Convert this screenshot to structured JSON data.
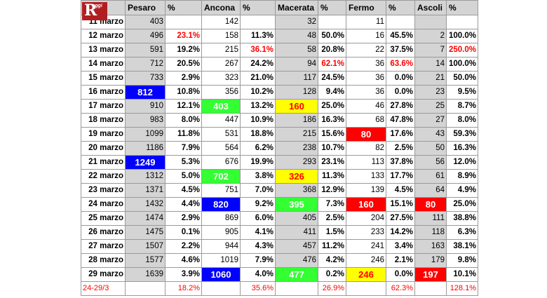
{
  "logo": {
    "letter": "R",
    "text": "oggi"
  },
  "header": [
    "",
    "Pesaro",
    "%",
    "Ancona",
    "%",
    "Macerata",
    "%",
    "Fermo",
    "%",
    "Ascoli",
    "%"
  ],
  "colors": {
    "blue": "#0000ff",
    "green": "#33ff33",
    "yellow": "#ffff00",
    "red": "#ff0000",
    "gray": "#d4d4d4"
  },
  "rows": [
    {
      "date": "11 marzo",
      "values": [
        "403",
        "",
        "142",
        "",
        "32",
        "",
        "11",
        "",
        "",
        ""
      ]
    },
    {
      "date": "12 marzo",
      "values": [
        "496",
        "23.1%",
        "158",
        "11.3%",
        "48",
        "50.0%",
        "16",
        "45.5%",
        "2",
        "100.0%"
      ]
    },
    {
      "date": "13 marzo",
      "values": [
        "591",
        "19.2%",
        "215",
        "36.1%",
        "58",
        "20.8%",
        "22",
        "37.5%",
        "7",
        "250.0%"
      ]
    },
    {
      "date": "14 marzo",
      "values": [
        "712",
        "20.5%",
        "267",
        "24.2%",
        "94",
        "62.1%",
        "36",
        "63.6%",
        "14",
        "100.0%"
      ]
    },
    {
      "date": "15 marzo",
      "values": [
        "733",
        "2.9%",
        "323",
        "21.0%",
        "117",
        "24.5%",
        "36",
        "0.0%",
        "21",
        "50.0%"
      ]
    },
    {
      "date": "16 marzo",
      "values": [
        "812",
        "10.8%",
        "356",
        "10.2%",
        "128",
        "9.4%",
        "36",
        "0.0%",
        "23",
        "9.5%"
      ]
    },
    {
      "date": "17 marzo",
      "values": [
        "910",
        "12.1%",
        "403",
        "13.2%",
        "160",
        "25.0%",
        "46",
        "27.8%",
        "25",
        "8.7%"
      ]
    },
    {
      "date": "18 marzo",
      "values": [
        "983",
        "8.0%",
        "447",
        "10.9%",
        "186",
        "16.3%",
        "68",
        "47.8%",
        "27",
        "8.0%"
      ]
    },
    {
      "date": "19 marzo",
      "values": [
        "1099",
        "11.8%",
        "531",
        "18.8%",
        "215",
        "15.6%",
        "80",
        "17.6%",
        "43",
        "59.3%"
      ]
    },
    {
      "date": "20 marzo",
      "values": [
        "1186",
        "7.9%",
        "564",
        "6.2%",
        "238",
        "10.7%",
        "82",
        "2.5%",
        "50",
        "16.3%"
      ]
    },
    {
      "date": "21 marzo",
      "values": [
        "1249",
        "5.3%",
        "676",
        "19.9%",
        "293",
        "23.1%",
        "113",
        "37.8%",
        "56",
        "12.0%"
      ]
    },
    {
      "date": "22 marzo",
      "values": [
        "1312",
        "5.0%",
        "702",
        "3.8%",
        "326",
        "11.3%",
        "133",
        "17.7%",
        "61",
        "8.9%"
      ]
    },
    {
      "date": "23 marzo",
      "values": [
        "1371",
        "4.5%",
        "751",
        "7.0%",
        "368",
        "12.9%",
        "139",
        "4.5%",
        "64",
        "4.9%"
      ]
    },
    {
      "date": "24 marzo",
      "values": [
        "1432",
        "4.4%",
        "820",
        "9.2%",
        "395",
        "7.3%",
        "160",
        "15.1%",
        "80",
        "25.0%"
      ]
    },
    {
      "date": "25 marzo",
      "values": [
        "1474",
        "2.9%",
        "869",
        "6.0%",
        "405",
        "2.5%",
        "204",
        "27.5%",
        "111",
        "38.8%"
      ]
    },
    {
      "date": "26 marzo",
      "values": [
        "1475",
        "0.1%",
        "905",
        "4.1%",
        "411",
        "1.5%",
        "233",
        "14.2%",
        "118",
        "6.3%"
      ]
    },
    {
      "date": "27 marzo",
      "values": [
        "1507",
        "2.2%",
        "944",
        "4.3%",
        "457",
        "11.2%",
        "241",
        "3.4%",
        "163",
        "38.1%"
      ]
    },
    {
      "date": "28 marzo",
      "values": [
        "1577",
        "4.6%",
        "1019",
        "7.9%",
        "476",
        "4.2%",
        "246",
        "2.1%",
        "179",
        "9.8%"
      ]
    },
    {
      "date": "29 marzo",
      "values": [
        "1639",
        "3.9%",
        "1060",
        "4.0%",
        "477",
        "0.2%",
        "246",
        "0.0%",
        "197",
        "10.1%"
      ]
    }
  ],
  "summary": {
    "date": "24-29/3",
    "values": [
      "",
      "18.2%",
      "",
      "35.6%",
      "",
      "26.9%",
      "",
      "62.3%",
      "",
      "128.1%"
    ]
  },
  "highlights": [
    {
      "row": 5,
      "col": 0,
      "color": "blue"
    },
    {
      "row": 10,
      "col": 0,
      "color": "blue"
    },
    {
      "row": 6,
      "col": 2,
      "color": "green"
    },
    {
      "row": 11,
      "col": 2,
      "color": "green"
    },
    {
      "row": 13,
      "col": 2,
      "color": "blue"
    },
    {
      "row": 18,
      "col": 2,
      "color": "blue"
    },
    {
      "row": 6,
      "col": 4,
      "color": "yellow"
    },
    {
      "row": 11,
      "col": 4,
      "color": "yellow"
    },
    {
      "row": 13,
      "col": 4,
      "color": "green"
    },
    {
      "row": 18,
      "col": 4,
      "color": "green"
    },
    {
      "row": 8,
      "col": 6,
      "color": "red"
    },
    {
      "row": 13,
      "col": 6,
      "color": "red"
    },
    {
      "row": 18,
      "col": 6,
      "color": "yellow"
    },
    {
      "row": 13,
      "col": 8,
      "color": "red"
    },
    {
      "row": 18,
      "col": 8,
      "color": "red"
    }
  ],
  "red_percentages": [
    {
      "row": 1,
      "col": 1
    },
    {
      "row": 2,
      "col": 3
    },
    {
      "row": 2,
      "col": 9
    },
    {
      "row": 3,
      "col": 5
    },
    {
      "row": 3,
      "col": 7
    }
  ]
}
